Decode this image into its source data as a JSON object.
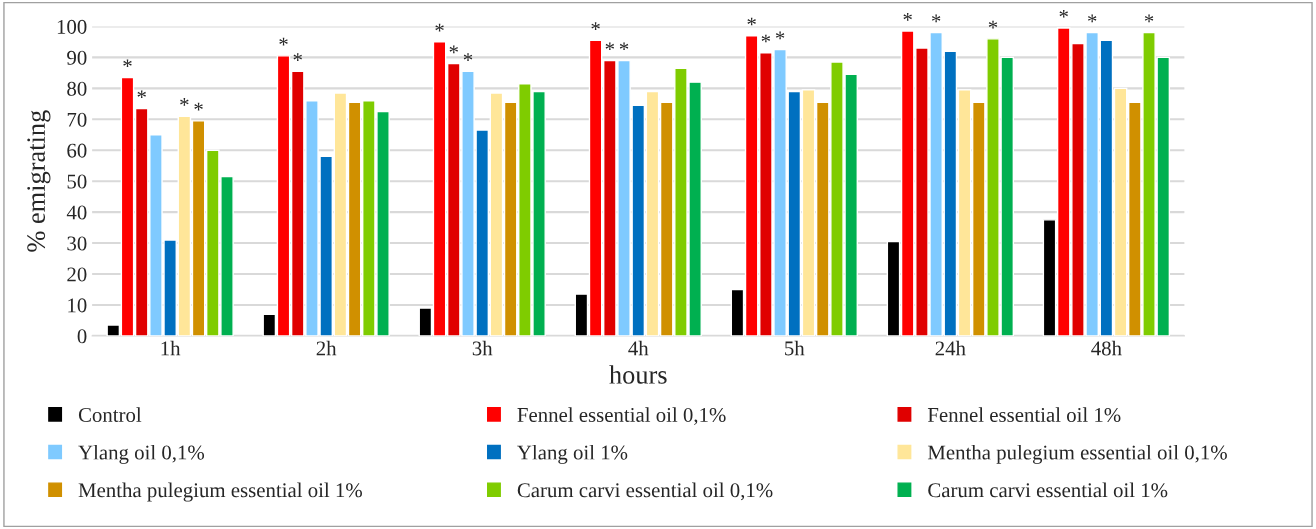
{
  "chart_data": {
    "type": "bar",
    "xlabel": "hours",
    "ylabel": "% emigrating",
    "categories": [
      "1h",
      "2h",
      "3h",
      "4h",
      "5h",
      "24h",
      "48h"
    ],
    "series": [
      {
        "name": "Control",
        "color": "#000000",
        "values": [
          3.5,
          7,
          9,
          13.5,
          15,
          30.5,
          37.5
        ]
      },
      {
        "name": "Fennel essential oil 0,1%",
        "color": "#ff0000",
        "values": [
          83.5,
          90.5,
          95,
          95.5,
          97,
          98.5,
          99.5
        ],
        "value_labels": [
          "*",
          "*",
          "*",
          "*",
          "*",
          "*",
          "*"
        ]
      },
      {
        "name": "Fennel essential oil 1%",
        "color": "#e00000",
        "values": [
          73.5,
          85.5,
          88,
          89,
          91.5,
          93,
          94.5
        ],
        "value_labels": [
          "*",
          "*",
          "*",
          "*",
          "*",
          null,
          null
        ]
      },
      {
        "name": "Ylang oil 0,1%",
        "color": "#7fcaff",
        "values": [
          65,
          76,
          85.5,
          89,
          92.5,
          98,
          98
        ],
        "value_labels": [
          null,
          null,
          "*",
          "*",
          "*",
          "*",
          "*"
        ]
      },
      {
        "name": "Ylang oil 1%",
        "color": "#0070c0",
        "values": [
          31,
          58,
          66.5,
          74.5,
          79,
          92,
          95.5
        ]
      },
      {
        "name": "Mentha pulegium essential oil 0,1%",
        "color": "#ffe699",
        "values": [
          71,
          78.5,
          78.5,
          79,
          79.5,
          79.5,
          80
        ],
        "value_labels": [
          "*",
          null,
          null,
          null,
          null,
          null,
          null
        ]
      },
      {
        "name": "Mentha pulegium essential oil 1%",
        "color": "#d09000",
        "values": [
          69.5,
          75.5,
          75.5,
          75.5,
          75.5,
          75.5,
          75.5
        ],
        "value_labels": [
          "*",
          null,
          null,
          null,
          null,
          null,
          null
        ]
      },
      {
        "name": "Carum carvi essential oil 0,1%",
        "color": "#7fcc00",
        "values": [
          60,
          76,
          81.5,
          86.5,
          88.5,
          96,
          98
        ],
        "value_labels": [
          null,
          null,
          null,
          null,
          null,
          "*",
          "*"
        ]
      },
      {
        "name": "Carum carvi essential oil 1%",
        "color": "#00b050",
        "values": [
          51.5,
          72.5,
          79,
          82,
          84.5,
          90,
          90
        ]
      }
    ],
    "ylim": [
      0,
      100
    ],
    "yticks": [
      0,
      10,
      20,
      30,
      40,
      50,
      60,
      70,
      80,
      90,
      100
    ],
    "grid": "y",
    "legend": "bottom"
  }
}
